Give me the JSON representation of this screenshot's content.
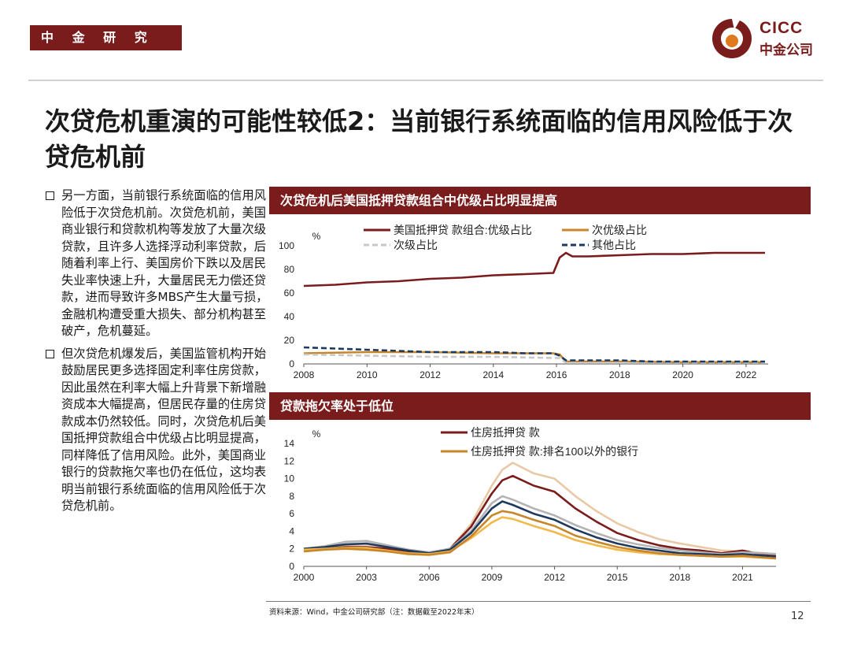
{
  "header": {
    "dept": "中 金 研 究 部",
    "logo_en": "CICC",
    "logo_cn": "中金公司"
  },
  "title": "次贷危机重演的可能性较低2：当前银行系统面临的信用风险低于次贷危机前",
  "bullets": [
    "另一方面，当前银行系统面临的信用风险低于次贷危机前。次贷危机前，美国商业银行和贷款机构等发放了大量次级贷款，且许多人选择浮动利率贷款，后随着利率上行、美国房价下跌以及居民失业率快速上升，大量居民无力偿还贷款，进而导致许多MBS产生大量亏损，金融机构遭受重大损失、部分机构甚至破产，危机蔓延。",
    "但次贷危机爆发后，美国监管机构开始鼓励居民更多选择固定利率住房贷款，因此虽然在利率大幅上升背景下新增融资成本大幅提高，但居民存量的住房贷款成本仍然较低。同时，次贷危机后美国抵押贷款组合中优级占比明显提高，同样降低了信用风险。此外，美国商业银行的贷款拖欠率也仍在低位，这均表明当前银行系统面临的信用风险低于次贷危机前。"
  ],
  "source": "资料来源：Wind，中金公司研究部（注：数据截至2022年末）",
  "page_number": "12",
  "colors": {
    "brand": "#7a1c1c",
    "prime": "#7a1c1c",
    "subprime": "#c8862b",
    "alt_a": "#c8c8c8",
    "other": "#1f3a5f"
  },
  "chart_data": [
    {
      "type": "line",
      "title": "次贷危机后美国抵押贷款组合中优级占比明显提高",
      "ylabel": "%",
      "xlim": [
        2008,
        2022.7
      ],
      "ylim": [
        0,
        100
      ],
      "yticks": [
        0,
        20,
        40,
        60,
        80,
        100
      ],
      "xticks": [
        2008,
        2010,
        2012,
        2014,
        2016,
        2018,
        2020,
        2022
      ],
      "legend": "top",
      "series": [
        {
          "name": "美国抵押贷 款组合:优级占比",
          "color": "#7a1c1c",
          "dash": "solid",
          "x": [
            2008,
            2009,
            2010,
            2011,
            2012,
            2013,
            2014,
            2015,
            2015.9,
            2016.1,
            2016.3,
            2016.5,
            2017,
            2018,
            2019,
            2020,
            2021,
            2022,
            2022.6
          ],
          "y": [
            66,
            67,
            69,
            70,
            72,
            73,
            75,
            76,
            77,
            90,
            94,
            91,
            91,
            92,
            93,
            93,
            94,
            94,
            94
          ]
        },
        {
          "name": "次优级占比",
          "color": "#c8862b",
          "dash": "solid",
          "x": [
            2008,
            2010,
            2012,
            2014,
            2015.9,
            2016.1,
            2016.3,
            2017,
            2018,
            2020,
            2022.6
          ],
          "y": [
            9,
            10,
            10,
            9,
            9,
            8,
            2,
            2,
            2,
            1.5,
            1.5
          ]
        },
        {
          "name": "次级占比",
          "color": "#c8c8c8",
          "dash": "dash",
          "x": [
            2008,
            2010,
            2012,
            2014,
            2015.9,
            2016.1,
            2016.3,
            2017,
            2020,
            2022.6
          ],
          "y": [
            8,
            7,
            6,
            6,
            5,
            5,
            1,
            1,
            1,
            1
          ]
        },
        {
          "name": "其他占比",
          "color": "#1f3a5f",
          "dash": "dash",
          "x": [
            2008,
            2009,
            2010,
            2011,
            2012,
            2013,
            2014,
            2015,
            2015.9,
            2016.1,
            2016.3,
            2017,
            2018,
            2019,
            2020,
            2021,
            2022,
            2022.6
          ],
          "y": [
            14,
            13,
            12,
            11,
            10,
            10,
            10,
            9,
            9,
            7,
            3,
            3,
            3,
            2,
            2,
            2,
            2,
            2
          ]
        }
      ]
    },
    {
      "type": "line",
      "title": "贷款拖欠率处于低位",
      "ylabel": "%",
      "xlim": [
        2000,
        2022.6
      ],
      "ylim": [
        0,
        14
      ],
      "yticks": [
        0,
        2,
        4,
        6,
        8,
        10,
        12,
        14
      ],
      "xticks": [
        2000,
        2003,
        2006,
        2009,
        2012,
        2015,
        2018,
        2021
      ],
      "legend": "top",
      "series": [
        {
          "name": "",
          "color": "#e8c9a6",
          "legend": false,
          "x": [
            2000,
            2001,
            2002,
            2003,
            2004,
            2005,
            2006,
            2007,
            2008,
            2009,
            2009.5,
            2010,
            2011,
            2012,
            2013,
            2014,
            2015,
            2016,
            2017,
            2018,
            2019,
            2020,
            2021,
            2022,
            2022.6
          ],
          "y": [
            1.8,
            2.0,
            2.4,
            2.5,
            2.2,
            1.8,
            1.6,
            2.0,
            4.8,
            9.2,
            11.0,
            11.8,
            10.6,
            10.0,
            8.0,
            6.3,
            4.9,
            3.9,
            3.1,
            2.6,
            2.2,
            1.8,
            1.7,
            1.5,
            1.4
          ]
        },
        {
          "name": "住房抵押贷 款",
          "color": "#7a1c1c",
          "legend": true,
          "x": [
            2000,
            2001,
            2002,
            2003,
            2004,
            2005,
            2006,
            2007,
            2008,
            2009,
            2009.5,
            2010,
            2011,
            2012,
            2013,
            2014,
            2015,
            2016,
            2017,
            2018,
            2019,
            2020,
            2021,
            2022,
            2022.6
          ],
          "y": [
            1.9,
            2.0,
            2.2,
            2.2,
            2.0,
            1.7,
            1.5,
            2.0,
            4.5,
            8.3,
            9.8,
            10.3,
            9.2,
            8.5,
            6.6,
            5.1,
            3.8,
            3.0,
            2.4,
            2.0,
            1.8,
            1.5,
            1.8,
            1.3,
            1.3
          ]
        },
        {
          "name": "",
          "color": "#b4b4b4",
          "legend": false,
          "x": [
            2000,
            2001,
            2002,
            2003,
            2004,
            2005,
            2006,
            2007,
            2008,
            2009,
            2009.5,
            2010,
            2011,
            2012,
            2013,
            2014,
            2015,
            2016,
            2017,
            2018,
            2019,
            2020,
            2021,
            2022,
            2022.6
          ],
          "y": [
            2.0,
            2.3,
            2.8,
            2.9,
            2.4,
            1.9,
            1.6,
            2.0,
            4.0,
            7.2,
            8.0,
            7.6,
            6.6,
            5.8,
            4.7,
            3.8,
            3.0,
            2.5,
            2.1,
            1.8,
            1.6,
            1.4,
            1.6,
            1.5,
            1.4
          ]
        },
        {
          "name": "",
          "color": "#1f3a5f",
          "legend": false,
          "x": [
            2000,
            2001,
            2002,
            2003,
            2004,
            2005,
            2006,
            2007,
            2008,
            2009,
            2009.5,
            2010,
            2011,
            2012,
            2013,
            2014,
            2015,
            2016,
            2017,
            2018,
            2019,
            2020,
            2021,
            2022,
            2022.6
          ],
          "y": [
            2.0,
            2.2,
            2.5,
            2.6,
            2.2,
            1.8,
            1.5,
            1.9,
            3.8,
            6.6,
            7.4,
            7.0,
            6.0,
            5.3,
            4.2,
            3.3,
            2.6,
            2.1,
            1.8,
            1.5,
            1.4,
            1.3,
            1.4,
            1.2,
            1.1
          ]
        },
        {
          "name": "",
          "color": "#f2b84a",
          "legend": false,
          "x": [
            2000,
            2001,
            2002,
            2003,
            2004,
            2005,
            2006,
            2007,
            2008,
            2009,
            2009.5,
            2010,
            2011,
            2012,
            2013,
            2014,
            2015,
            2016,
            2017,
            2018,
            2019,
            2020,
            2021,
            2022,
            2022.6
          ],
          "y": [
            1.9,
            2.0,
            2.1,
            2.1,
            1.8,
            1.5,
            1.4,
            1.7,
            3.2,
            5.0,
            5.6,
            5.4,
            4.6,
            3.9,
            3.0,
            2.4,
            1.9,
            1.6,
            1.4,
            1.3,
            1.2,
            1.1,
            1.1,
            1.0,
            0.9
          ]
        },
        {
          "name": "住房抵押贷 款:排名100以外的银行",
          "color": "#c8862b",
          "legend": true,
          "x": [
            2000,
            2001,
            2002,
            2003,
            2004,
            2005,
            2006,
            2007,
            2008,
            2009,
            2009.5,
            2010,
            2011,
            2012,
            2013,
            2014,
            2015,
            2016,
            2017,
            2018,
            2019,
            2020,
            2021,
            2022,
            2022.6
          ],
          "y": [
            1.7,
            1.9,
            2.0,
            1.9,
            1.7,
            1.4,
            1.3,
            1.6,
            3.4,
            5.8,
            6.3,
            6.1,
            5.3,
            4.6,
            3.5,
            2.8,
            2.2,
            1.8,
            1.5,
            1.3,
            1.2,
            1.1,
            1.2,
            1.0,
            0.9
          ]
        }
      ]
    }
  ]
}
